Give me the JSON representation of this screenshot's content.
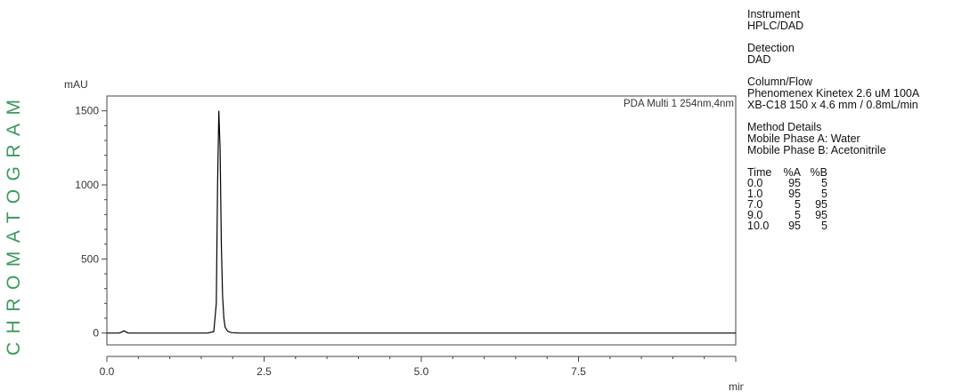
{
  "banner": {
    "text": "CHROMATOGRAM",
    "color": "#3a9a5a"
  },
  "chart_data": {
    "type": "line",
    "ylabel": "mAU",
    "xlabel": "min",
    "trace_label": "PDA Multi 1 254nm,4nm",
    "xlim": [
      0,
      10
    ],
    "ylim": [
      -80,
      1600
    ],
    "x_ticks": [
      {
        "value": 0,
        "label": "0.0"
      },
      {
        "value": 2.5,
        "label": "2.5"
      },
      {
        "value": 5,
        "label": "5.0"
      },
      {
        "value": 7.5,
        "label": "7.5"
      }
    ],
    "y_ticks": [
      {
        "value": 0,
        "label": "0"
      },
      {
        "value": 500,
        "label": "500"
      },
      {
        "value": 1000,
        "label": "1000"
      },
      {
        "value": 1500,
        "label": "1500"
      }
    ],
    "series": [
      {
        "color": "#000000",
        "x": [
          0,
          0.2,
          0.24,
          0.27,
          0.3,
          0.34,
          0.4,
          1.6,
          1.7,
          1.74,
          1.76,
          1.78,
          1.8,
          1.82,
          1.84,
          1.86,
          1.88,
          1.92,
          1.98,
          2.1,
          2.5,
          5,
          7.5,
          10
        ],
        "y": [
          0,
          0,
          8,
          15,
          8,
          0,
          0,
          0,
          10,
          200,
          1000,
          1500,
          1250,
          600,
          250,
          100,
          40,
          12,
          3,
          0,
          0,
          0,
          0,
          0
        ]
      }
    ]
  },
  "info": {
    "instrument": {
      "label": "Instrument",
      "value": "HPLC/DAD"
    },
    "detection": {
      "label": "Detection",
      "value": "DAD"
    },
    "column_flow": {
      "label": "Column/Flow",
      "line1": "Phenomenex Kinetex 2.6 uM 100A",
      "line2": "XB-C18 150 x 4.6 mm / 0.8mL/min"
    },
    "method": {
      "label": "Method Details",
      "line1": "Mobile Phase A: Water",
      "line2": "Mobile Phase B: Acetonitrile"
    },
    "gradient": {
      "headers": [
        "Time",
        "%A",
        "%B"
      ],
      "rows": [
        [
          "0.0",
          "95",
          "5"
        ],
        [
          "1.0",
          "95",
          "5"
        ],
        [
          "7.0",
          "5",
          "95"
        ],
        [
          "9.0",
          "5",
          "95"
        ],
        [
          "10.0",
          "95",
          "5"
        ]
      ]
    }
  }
}
